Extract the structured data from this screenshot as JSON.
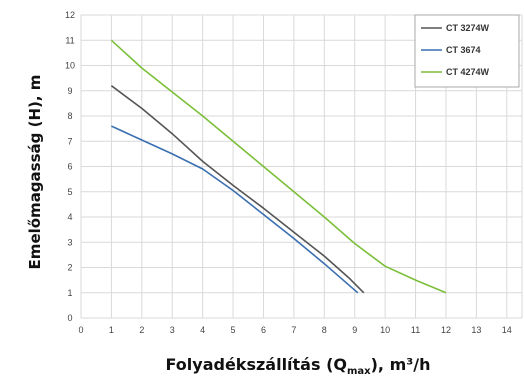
{
  "chart_data": {
    "type": "line",
    "xlabel": {
      "main": "Folyadékszállítás (Q",
      "sub": "max",
      "tail": "), m³/h"
    },
    "ylabel": "Emelőmagasság (H), m",
    "xlim": [
      0,
      14.5
    ],
    "ylim": [
      0,
      12
    ],
    "xticks": [
      "0",
      "1",
      "2",
      "3",
      "4",
      "5",
      "6",
      "7",
      "8",
      "9",
      "10",
      "11",
      "12",
      "13",
      "14"
    ],
    "yticks": [
      "0",
      "1",
      "2",
      "3",
      "4",
      "5",
      "6",
      "7",
      "8",
      "9",
      "10",
      "11",
      "12"
    ],
    "grid": true,
    "legend_position": "top-right",
    "series": [
      {
        "name": "CT 3274W",
        "color": "#555555",
        "x": [
          1,
          2,
          3,
          4,
          5,
          6,
          7,
          8,
          8.8,
          9.3
        ],
        "y": [
          9.2,
          8.3,
          7.3,
          6.2,
          5.25,
          4.35,
          3.4,
          2.45,
          1.6,
          1.0
        ]
      },
      {
        "name": "CT 3674",
        "color": "#3a6fb0",
        "x": [
          1,
          2,
          3,
          4,
          5,
          6,
          7,
          8,
          9.1
        ],
        "y": [
          7.6,
          7.05,
          6.5,
          5.9,
          5.05,
          4.1,
          3.15,
          2.15,
          1.0
        ]
      },
      {
        "name": "CT 4274W",
        "color": "#7cbf3a",
        "x": [
          1,
          2,
          3,
          4,
          5,
          6,
          7,
          8,
          9,
          10,
          11,
          12
        ],
        "y": [
          11.0,
          9.9,
          8.95,
          8.0,
          7.0,
          6.0,
          5.0,
          4.0,
          2.95,
          2.05,
          1.5,
          1.0
        ]
      }
    ]
  }
}
